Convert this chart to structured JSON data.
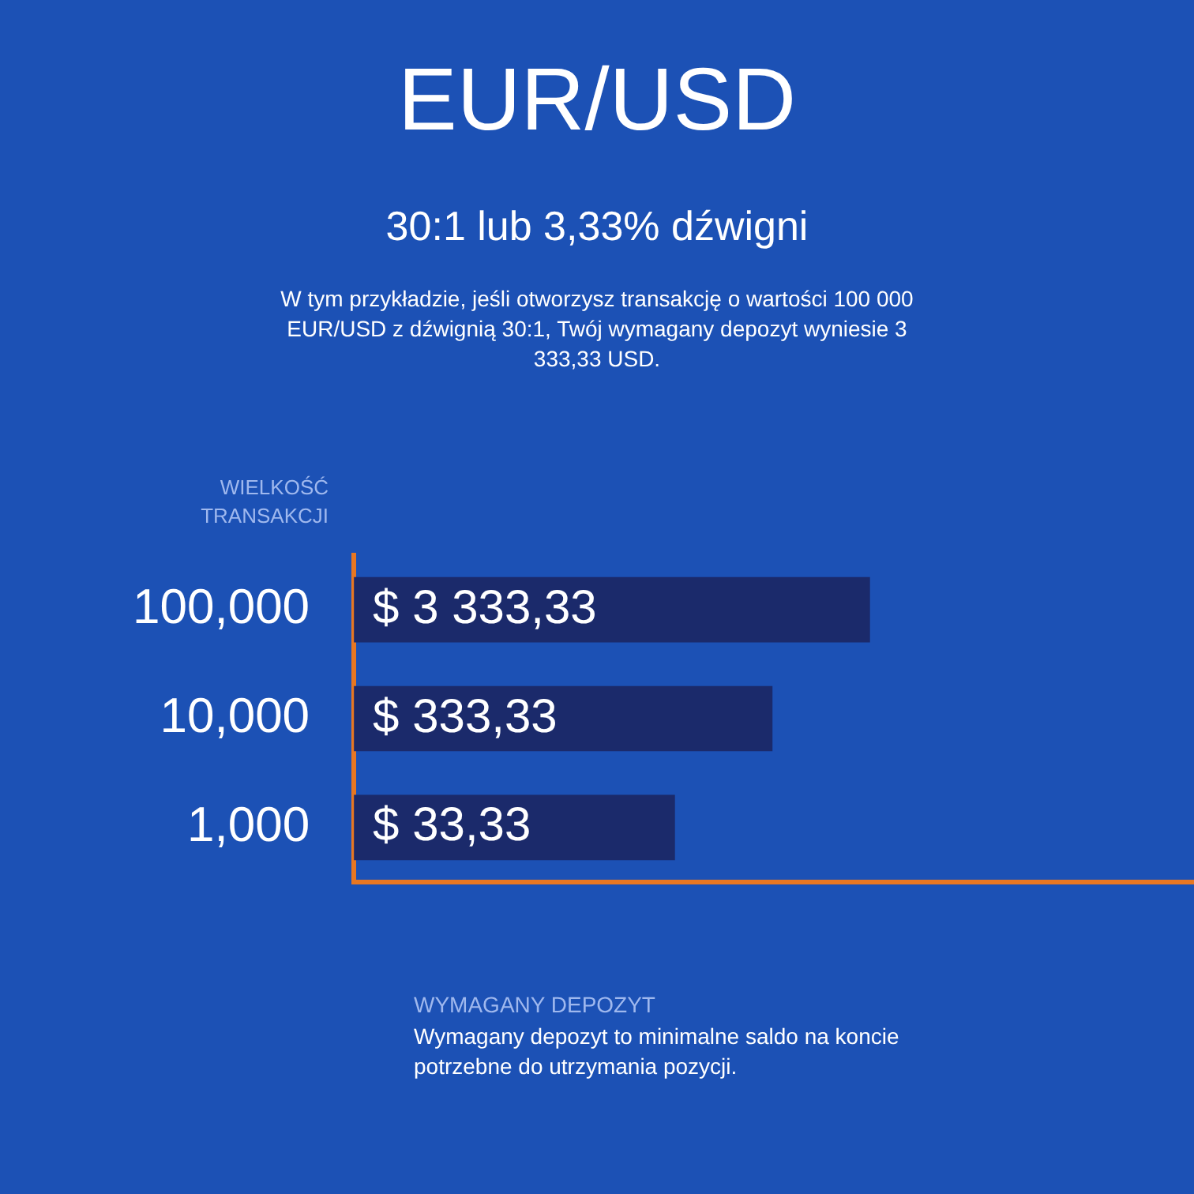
{
  "chart_data": {
    "type": "bar",
    "orientation": "horizontal",
    "title": "EUR/USD",
    "subtitle": "30:1 lub 3,33% dźwigni",
    "annotations": [
      "W tym przykładzie, jeśli otworzysz transakcję o wartości 100 000 EUR/USD z dźwignią 30:1, Twój wymagany depozyt wyniesie 3 333,33 USD.",
      "Wymagany depozyt  to minimalne saldo na koncie potrzebne do utrzymania pozycji."
    ],
    "ylabel": "WIELKOŚĆ TRANSAKCJI",
    "xlabel": "WYMAGANY DEPOZYT",
    "categories": [
      "100,000",
      "10,000",
      "1,000"
    ],
    "values": [
      3333.33,
      333.33,
      33.33
    ],
    "value_labels": [
      "$ 3 333,33",
      "$ 333,33",
      "$ 33,33"
    ],
    "color": "#1b2a6b",
    "log": "x",
    "xlim": [
      0.017,
      7000000
    ],
    "tick_labels": "y",
    "grid": false
  }
}
